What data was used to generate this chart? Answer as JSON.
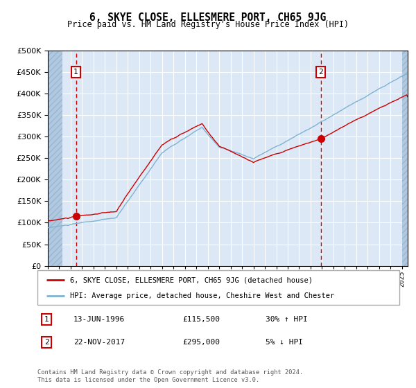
{
  "title": "6, SKYE CLOSE, ELLESMERE PORT, CH65 9JG",
  "subtitle": "Price paid vs. HM Land Registry's House Price Index (HPI)",
  "legend_line1": "6, SKYE CLOSE, ELLESMERE PORT, CH65 9JG (detached house)",
  "legend_line2": "HPI: Average price, detached house, Cheshire West and Chester",
  "t1_date": "13-JUN-1996",
  "t1_price_str": "£115,500",
  "t1_hpi": "30% ↑ HPI",
  "t1_year": 1996.46,
  "t1_price": 115500,
  "t2_date": "22-NOV-2017",
  "t2_price_str": "£295,000",
  "t2_hpi": "5% ↓ HPI",
  "t2_year": 2017.89,
  "t2_price": 295000,
  "year_start": 1994.0,
  "year_end": 2025.5,
  "ymin": 0,
  "ymax": 500000,
  "yticks": [
    0,
    50000,
    100000,
    150000,
    200000,
    250000,
    300000,
    350000,
    400000,
    450000,
    500000
  ],
  "red_color": "#cc0000",
  "blue_color": "#7fb3d3",
  "bg_color": "#dce8f5",
  "hatch_color": "#b0c8e0",
  "grid_color": "#ffffff",
  "footer_line1": "Contains HM Land Registry data © Crown copyright and database right 2024.",
  "footer_line2": "This data is licensed under the Open Government Licence v3.0."
}
